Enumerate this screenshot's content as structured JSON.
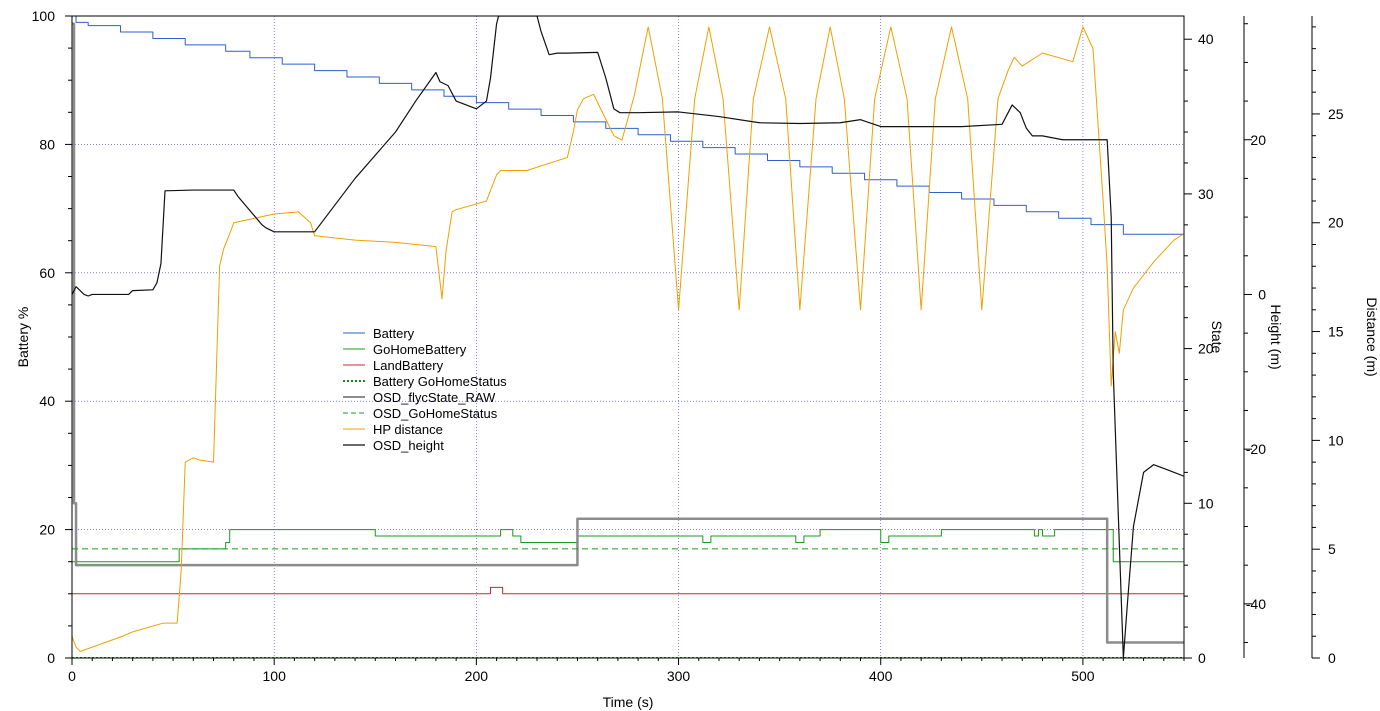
{
  "chart_data": {
    "type": "line",
    "xlabel": "Time (s)",
    "xlim": [
      0,
      550
    ],
    "x_ticks": [
      0,
      100,
      200,
      300,
      400,
      500
    ],
    "grid": true,
    "legend_position": "center-left",
    "axes": [
      {
        "id": "battery",
        "label": "Battery %",
        "side": "left",
        "range": [
          0,
          100
        ],
        "ticks": [
          0,
          20,
          40,
          60,
          80,
          100
        ]
      },
      {
        "id": "state",
        "label": "State",
        "side": "right",
        "range": [
          0,
          41.5
        ],
        "ticks": [
          0,
          10,
          20,
          30,
          40
        ]
      },
      {
        "id": "height",
        "label": "Height (m)",
        "side": "right",
        "range": [
          -47,
          36
        ],
        "ticks": [
          -40,
          -20,
          0,
          20
        ]
      },
      {
        "id": "distance",
        "label": "Distance (m)",
        "side": "right",
        "range": [
          0,
          29.5
        ],
        "ticks": [
          0,
          5,
          10,
          15,
          20,
          25
        ]
      }
    ],
    "series": [
      {
        "name": "Battery",
        "axis": "battery",
        "color": "#2f5fd0",
        "style": "solid",
        "width": 1,
        "step": true,
        "x": [
          0,
          1,
          2,
          8,
          24,
          40,
          56,
          76,
          88,
          104,
          120,
          136,
          152,
          168,
          184,
          200,
          216,
          232,
          248,
          264,
          280,
          296,
          312,
          328,
          344,
          360,
          376,
          392,
          408,
          424,
          440,
          456,
          472,
          488,
          504,
          520,
          550
        ],
        "y": [
          100,
          100,
          99,
          98.5,
          97.5,
          96.5,
          95.5,
          94.5,
          93.5,
          92.5,
          91.5,
          90.5,
          89.5,
          88.5,
          87.5,
          86.5,
          85.5,
          84.5,
          83.5,
          82.5,
          81.5,
          80.5,
          79.5,
          78.5,
          77.5,
          76.5,
          75.5,
          74.5,
          73.5,
          72.5,
          71.5,
          70.5,
          69.5,
          68.5,
          67.5,
          66,
          66
        ]
      },
      {
        "name": "GoHomeBattery",
        "axis": "battery",
        "color": "#1a9a1a",
        "style": "solid",
        "width": 1,
        "step": true,
        "x": [
          0,
          52,
          53,
          75,
          76,
          78,
          150,
          208,
          212,
          218,
          222,
          250,
          260,
          312,
          316,
          358,
          362,
          370,
          400,
          404,
          408,
          430,
          476,
          478,
          480,
          486,
          512,
          515,
          550
        ],
        "y": [
          15,
          15,
          17,
          17,
          18,
          20,
          19,
          19,
          20,
          19,
          18,
          19,
          19,
          18,
          19,
          18,
          19,
          20,
          18,
          19,
          19,
          20,
          19,
          20,
          19,
          20,
          20,
          15,
          15
        ]
      },
      {
        "name": "LandBattery",
        "axis": "battery",
        "color": "#d0203c",
        "style": "solid",
        "width": 1,
        "step": true,
        "x": [
          0,
          207,
          213,
          550
        ],
        "y": [
          10,
          11,
          10,
          10
        ]
      },
      {
        "name": "Battery GoHomeStatus",
        "axis": "battery",
        "color": "#1a8a1a",
        "style": "dotted",
        "width": 2,
        "step": true,
        "x": [
          0,
          550
        ],
        "y": [
          0,
          0
        ]
      },
      {
        "name": "OSD_flycState_RAW",
        "axis": "state",
        "color": "#8c8c8c",
        "style": "solid",
        "width": 2.5,
        "step": true,
        "x": [
          0,
          1,
          2,
          3,
          250,
          512,
          550
        ],
        "y": [
          41,
          10,
          6,
          6,
          9,
          1,
          1
        ]
      },
      {
        "name": "OSD_GoHomeStatus",
        "axis": "battery",
        "color": "#1a9a1a",
        "style": "dashed",
        "width": 1,
        "step": false,
        "x": [
          0,
          550
        ],
        "y": [
          17,
          17
        ]
      },
      {
        "name": "HP distance",
        "axis": "distance",
        "color": "#f0a000",
        "style": "solid",
        "width": 1,
        "step": false,
        "x": [
          0,
          2,
          4,
          10,
          25,
          30,
          45,
          52,
          54,
          56,
          60,
          63,
          70,
          73,
          75,
          78,
          80,
          90,
          100,
          112,
          118,
          120,
          140,
          160,
          180,
          183,
          185,
          188,
          190,
          205,
          210,
          212,
          225,
          245,
          248,
          250,
          253,
          258,
          268,
          272,
          278,
          285,
          292,
          300,
          308,
          315,
          322,
          330,
          337,
          345,
          353,
          360,
          368,
          375,
          382,
          390,
          397,
          405,
          413,
          420,
          427,
          435,
          443,
          450,
          458,
          463,
          466,
          470,
          480,
          495,
          500,
          505,
          510,
          512,
          514,
          516,
          518,
          520,
          525,
          535,
          545,
          550
        ],
        "y": [
          1,
          0.5,
          0.3,
          0.5,
          1,
          1.2,
          1.6,
          1.6,
          4,
          9,
          9.2,
          9.1,
          9,
          18,
          18.8,
          19.5,
          20,
          20.2,
          20.4,
          20.5,
          20,
          19.4,
          19.2,
          19.1,
          18.9,
          16.5,
          18.7,
          20.5,
          20.6,
          21,
          22.2,
          22.4,
          22.4,
          23,
          24.2,
          25.2,
          25.7,
          25.9,
          24,
          23.8,
          25.8,
          29,
          25.7,
          16,
          25.7,
          29,
          25.7,
          16,
          25.7,
          29,
          25.7,
          16,
          25.7,
          29,
          25.7,
          16,
          25.7,
          29,
          25.7,
          16,
          25.7,
          29,
          25.7,
          16,
          25.7,
          27,
          27.6,
          27.2,
          27.8,
          27.4,
          29,
          28,
          21,
          18,
          12.5,
          15,
          14,
          16,
          17,
          18.2,
          19.2,
          19.5
        ]
      },
      {
        "name": "OSD_height",
        "axis": "height",
        "color": "#111111",
        "style": "solid",
        "width": 1.2,
        "step": false,
        "x": [
          0,
          2,
          4,
          6,
          8,
          10,
          28,
          30,
          40,
          42,
          44,
          46,
          60,
          80,
          82,
          94,
          96,
          100,
          115,
          120,
          140,
          160,
          170,
          180,
          182,
          186,
          190,
          195,
          200,
          205,
          207,
          210,
          211,
          220,
          230,
          232,
          236,
          240,
          245,
          260,
          264,
          268,
          271,
          280,
          300,
          320,
          340,
          360,
          380,
          390,
          400,
          420,
          440,
          460,
          465,
          469,
          472,
          475,
          480,
          490,
          500,
          512,
          514,
          515,
          520,
          522,
          525,
          530,
          535,
          540,
          545,
          550
        ],
        "y": [
          0,
          1,
          0.5,
          0,
          -0.2,
          0,
          0,
          0.5,
          0.6,
          1.5,
          4,
          13.4,
          13.5,
          13.5,
          12.7,
          9,
          8.6,
          8.1,
          8.1,
          8.1,
          15,
          21,
          25,
          28.7,
          27.5,
          27,
          25,
          24.5,
          24,
          25,
          28,
          35,
          36,
          36,
          36,
          34,
          31,
          31.2,
          31.2,
          31.3,
          28,
          24,
          23.5,
          23.5,
          23.6,
          23,
          22.2,
          22.1,
          22.2,
          22.6,
          21.7,
          21.7,
          21.7,
          22,
          24.5,
          23.5,
          21.5,
          20.5,
          20.5,
          20,
          20,
          20,
          10,
          -10,
          -47,
          -40,
          -30,
          -23,
          -22,
          -22.5,
          -23,
          -23.5
        ]
      }
    ]
  }
}
